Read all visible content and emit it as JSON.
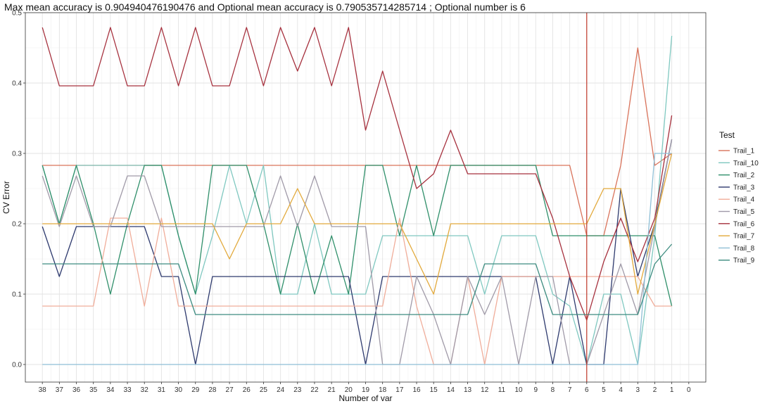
{
  "chart_data": {
    "type": "line",
    "title": "Max mean accuracy is 0.904940476190476 and Optional mean accuracy is 0.790535714285714  ; Optional number is 6",
    "xlabel": "Number of var",
    "ylabel": "CV Error",
    "x": [
      38,
      37,
      36,
      35,
      34,
      33,
      32,
      31,
      30,
      29,
      28,
      27,
      26,
      25,
      24,
      23,
      22,
      21,
      20,
      19,
      18,
      17,
      16,
      15,
      14,
      13,
      12,
      11,
      10,
      9,
      8,
      7,
      6,
      5,
      4,
      3,
      2,
      1
    ],
    "x_ticks": [
      38,
      37,
      36,
      35,
      34,
      33,
      32,
      31,
      30,
      29,
      28,
      27,
      26,
      25,
      24,
      23,
      22,
      21,
      20,
      19,
      18,
      17,
      16,
      15,
      14,
      13,
      12,
      11,
      10,
      9,
      8,
      7,
      6,
      5,
      4,
      3,
      2,
      1,
      0
    ],
    "xlim": [
      39,
      -1
    ],
    "x_reversed": true,
    "ylim": [
      -0.025,
      0.5
    ],
    "y_ticks": [
      0.0,
      0.1,
      0.2,
      0.3,
      0.4,
      0.5
    ],
    "y_tick_labels": [
      "0.0",
      "0.1",
      "0.2",
      "0.3",
      "0.4",
      "0.5"
    ],
    "vline_x": 6,
    "vline_color": "#c0392b",
    "grid": true,
    "legend_title": "Test",
    "legend_position": "right",
    "series": [
      {
        "name": "Trail_1",
        "color": "#d9735b",
        "values": [
          0.283,
          0.283,
          0.283,
          0.283,
          0.283,
          0.283,
          0.283,
          0.283,
          0.283,
          0.283,
          0.283,
          0.283,
          0.283,
          0.283,
          0.283,
          0.283,
          0.283,
          0.283,
          0.283,
          0.283,
          0.283,
          0.283,
          0.283,
          0.283,
          0.283,
          0.283,
          0.283,
          0.283,
          0.283,
          0.283,
          0.283,
          0.283,
          0.183,
          0.183,
          0.283,
          0.45,
          0.283,
          0.3
        ]
      },
      {
        "name": "Trail_10",
        "color": "#7fc8c0",
        "values": [
          0.283,
          0.2,
          0.283,
          0.283,
          0.283,
          0.283,
          0.283,
          0.283,
          0.183,
          0.1,
          0.183,
          0.283,
          0.2,
          0.283,
          0.1,
          0.1,
          0.2,
          0.1,
          0.1,
          0.1,
          0.183,
          0.183,
          0.183,
          0.183,
          0.183,
          0.183,
          0.1,
          0.183,
          0.183,
          0.183,
          0.1,
          0.083,
          0.0,
          0.1,
          0.1,
          0.0,
          0.183,
          0.467
        ]
      },
      {
        "name": "Trail_2",
        "color": "#2f8f6a",
        "values": [
          0.283,
          0.2,
          0.283,
          0.2,
          0.1,
          0.2,
          0.283,
          0.283,
          0.183,
          0.1,
          0.283,
          0.283,
          0.283,
          0.2,
          0.1,
          0.2,
          0.1,
          0.183,
          0.1,
          0.283,
          0.283,
          0.183,
          0.283,
          0.183,
          0.283,
          0.283,
          0.283,
          0.283,
          0.283,
          0.283,
          0.183,
          0.183,
          0.183,
          0.183,
          0.183,
          0.183,
          0.183,
          0.083
        ]
      },
      {
        "name": "Trail_3",
        "color": "#2e3a6e",
        "values": [
          0.196,
          0.125,
          0.196,
          0.196,
          0.196,
          0.196,
          0.196,
          0.125,
          0.125,
          0.0,
          0.125,
          0.125,
          0.125,
          0.125,
          0.125,
          0.125,
          0.125,
          0.125,
          0.125,
          0.0,
          0.125,
          0.125,
          0.125,
          0.125,
          0.125,
          0.125,
          0.125,
          0.125,
          0.125,
          0.125,
          0.0,
          0.125,
          0.0,
          0.0,
          0.25,
          0.125,
          0.2,
          0.32
        ]
      },
      {
        "name": "Trail_4",
        "color": "#f0ad9a",
        "values": [
          0.083,
          0.083,
          0.083,
          0.083,
          0.208,
          0.208,
          0.083,
          0.208,
          0.083,
          0.083,
          0.083,
          0.083,
          0.083,
          0.083,
          0.083,
          0.083,
          0.083,
          0.083,
          0.083,
          0.083,
          0.083,
          0.208,
          0.083,
          0.0,
          0.0,
          0.125,
          0.0,
          0.125,
          0.125,
          0.125,
          0.125,
          0.125,
          0.125,
          0.125,
          0.125,
          0.125,
          0.083,
          0.083
        ]
      },
      {
        "name": "Trail_5",
        "color": "#a09aa8",
        "values": [
          0.268,
          0.196,
          0.268,
          0.196,
          0.196,
          0.268,
          0.268,
          0.196,
          0.196,
          0.196,
          0.196,
          0.196,
          0.196,
          0.196,
          0.268,
          0.196,
          0.268,
          0.196,
          0.196,
          0.196,
          0.0,
          0.0,
          0.125,
          0.071,
          0.0,
          0.125,
          0.071,
          0.125,
          0.0,
          0.125,
          0.125,
          0.0,
          0.0,
          0.071,
          0.143,
          0.071,
          0.196,
          0.32
        ]
      },
      {
        "name": "Trail_6",
        "color": "#a6303d",
        "values": [
          0.479,
          0.396,
          0.396,
          0.396,
          0.479,
          0.396,
          0.396,
          0.479,
          0.396,
          0.479,
          0.396,
          0.396,
          0.479,
          0.396,
          0.479,
          0.417,
          0.479,
          0.396,
          0.479,
          0.333,
          0.417,
          0.333,
          0.25,
          0.271,
          0.333,
          0.271,
          0.271,
          0.271,
          0.271,
          0.271,
          0.208,
          0.125,
          0.063,
          0.146,
          0.208,
          0.146,
          0.208,
          0.354
        ]
      },
      {
        "name": "Trail_7",
        "color": "#e2a93b",
        "values": [
          0.2,
          0.2,
          0.2,
          0.2,
          0.2,
          0.2,
          0.2,
          0.2,
          0.2,
          0.2,
          0.2,
          0.15,
          0.2,
          0.2,
          0.2,
          0.25,
          0.2,
          0.2,
          0.2,
          0.2,
          0.2,
          0.2,
          0.15,
          0.1,
          0.2,
          0.2,
          0.2,
          0.2,
          0.2,
          0.2,
          0.2,
          0.2,
          0.2,
          0.25,
          0.25,
          0.1,
          0.2,
          0.3
        ]
      },
      {
        "name": "Trail_8",
        "color": "#8fbfd6",
        "values": [
          0.0,
          0.0,
          0.0,
          0.0,
          0.0,
          0.0,
          0.0,
          0.0,
          0.0,
          0.0,
          0.0,
          0.0,
          0.0,
          0.0,
          0.0,
          0.0,
          0.0,
          0.0,
          0.0,
          0.0,
          0.0,
          0.0,
          0.0,
          0.0,
          0.0,
          0.0,
          0.0,
          0.0,
          0.0,
          0.0,
          0.0,
          0.0,
          0.0,
          0.0,
          0.0,
          0.0,
          0.3,
          0.3
        ]
      },
      {
        "name": "Trail_9",
        "color": "#3d8c80",
        "values": [
          0.143,
          0.143,
          0.143,
          0.143,
          0.143,
          0.143,
          0.143,
          0.143,
          0.143,
          0.071,
          0.071,
          0.071,
          0.071,
          0.071,
          0.071,
          0.071,
          0.071,
          0.071,
          0.071,
          0.071,
          0.071,
          0.071,
          0.071,
          0.071,
          0.071,
          0.071,
          0.143,
          0.143,
          0.143,
          0.143,
          0.071,
          0.071,
          0.071,
          0.071,
          0.071,
          0.071,
          0.143,
          0.171
        ]
      }
    ]
  }
}
